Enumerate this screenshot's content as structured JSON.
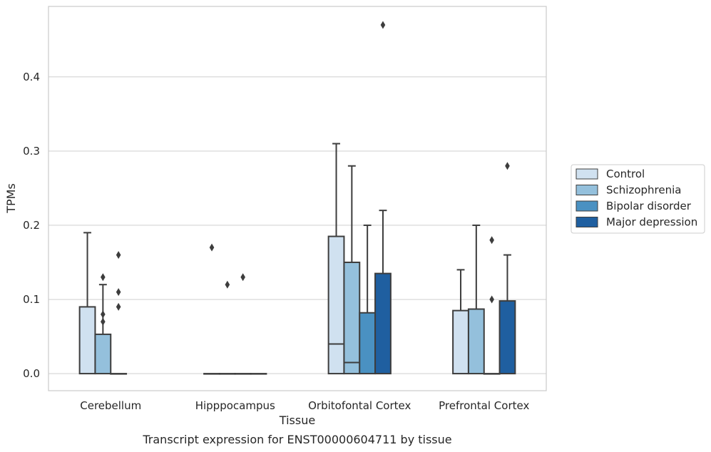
{
  "chart_data": {
    "type": "box",
    "caption": "Transcript expression for ENST00000604711 by tissue",
    "xlabel": "Tissue",
    "ylabel": "TPMs",
    "ylim": [
      -0.023,
      0.495
    ],
    "yticks": [
      0.0,
      0.1,
      0.2,
      0.3,
      0.4
    ],
    "ytick_labels": [
      "0.0",
      "0.1",
      "0.2",
      "0.3",
      "0.4"
    ],
    "grid": "horizontal",
    "legend_position": "right",
    "categories": [
      "Cerebellum",
      "Hipppocampus",
      "Orbitofontal Cortex",
      "Prefrontal Cortex"
    ],
    "series": [
      {
        "name": "Control",
        "color": "#d0e1f0",
        "boxes": [
          {
            "q1": 0.0,
            "median": 0.0,
            "q3": 0.09,
            "whisker_low": 0.0,
            "whisker_high": 0.19,
            "outliers": []
          },
          {
            "q1": 0.0,
            "median": 0.0,
            "q3": 0.0,
            "whisker_low": 0.0,
            "whisker_high": 0.0,
            "outliers": [
              0.17
            ]
          },
          {
            "q1": 0.0,
            "median": 0.04,
            "q3": 0.185,
            "whisker_low": 0.0,
            "whisker_high": 0.31,
            "outliers": []
          },
          {
            "q1": 0.0,
            "median": 0.0,
            "q3": 0.085,
            "whisker_low": 0.0,
            "whisker_high": 0.14,
            "outliers": []
          }
        ]
      },
      {
        "name": "Schizophrenia",
        "color": "#94c0dc",
        "boxes": [
          {
            "q1": 0.0,
            "median": 0.0,
            "q3": 0.053,
            "whisker_low": 0.0,
            "whisker_high": 0.12,
            "outliers": [
              0.13,
              0.08,
              0.07
            ]
          },
          {
            "q1": 0.0,
            "median": 0.0,
            "q3": 0.0,
            "whisker_low": 0.0,
            "whisker_high": 0.0,
            "outliers": [
              0.12
            ]
          },
          {
            "q1": 0.0,
            "median": 0.015,
            "q3": 0.15,
            "whisker_low": 0.0,
            "whisker_high": 0.28,
            "outliers": []
          },
          {
            "q1": 0.0,
            "median": 0.0,
            "q3": 0.087,
            "whisker_low": 0.0,
            "whisker_high": 0.2,
            "outliers": []
          }
        ]
      },
      {
        "name": "Bipolar disorder",
        "color": "#4a91c2",
        "boxes": [
          {
            "q1": 0.0,
            "median": 0.0,
            "q3": 0.0,
            "whisker_low": 0.0,
            "whisker_high": 0.0,
            "outliers": [
              0.16,
              0.11,
              0.09
            ]
          },
          {
            "q1": 0.0,
            "median": 0.0,
            "q3": 0.0,
            "whisker_low": 0.0,
            "whisker_high": 0.0,
            "outliers": [
              0.13
            ]
          },
          {
            "q1": 0.0,
            "median": 0.0,
            "q3": 0.082,
            "whisker_low": 0.0,
            "whisker_high": 0.2,
            "outliers": []
          },
          {
            "q1": 0.0,
            "median": 0.0,
            "q3": 0.0,
            "whisker_low": 0.0,
            "whisker_high": 0.0,
            "outliers": [
              0.18,
              0.1
            ]
          }
        ]
      },
      {
        "name": "Major depression",
        "color": "#1f5fa0",
        "boxes": [
          null,
          {
            "q1": 0.0,
            "median": 0.0,
            "q3": 0.0,
            "whisker_low": 0.0,
            "whisker_high": 0.0,
            "outliers": []
          },
          {
            "q1": 0.0,
            "median": 0.0,
            "q3": 0.135,
            "whisker_low": 0.0,
            "whisker_high": 0.22,
            "outliers": [
              0.47
            ]
          },
          {
            "q1": 0.0,
            "median": 0.0,
            "q3": 0.098,
            "whisker_low": 0.0,
            "whisker_high": 0.16,
            "outliers": [
              0.28
            ]
          }
        ]
      }
    ]
  }
}
